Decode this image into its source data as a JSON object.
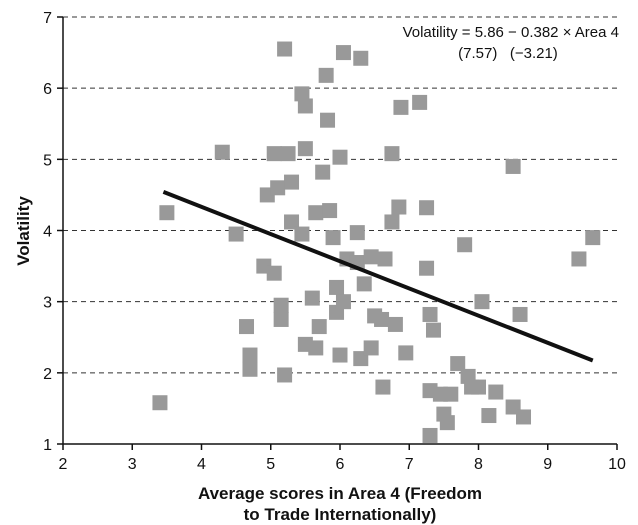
{
  "chart_data": {
    "type": "scatter",
    "xlabel_lines": [
      "Average scores in Area 4 (Freedom",
      "to Trade Internationally)"
    ],
    "ylabel": "Volatility",
    "xlim": [
      2,
      10
    ],
    "ylim": [
      1,
      7
    ],
    "x_ticks": [
      "2",
      "3",
      "4",
      "5",
      "6",
      "7",
      "8",
      "9",
      "10"
    ],
    "y_ticks": [
      "1",
      "2",
      "3",
      "4",
      "5",
      "6",
      "7"
    ],
    "grid": "horizontal-dashed",
    "equation": {
      "line1": "Volatility = 5.86 − 0.382 × Area 4",
      "line2": "(7.57)   (−3.21)"
    },
    "fit_line": {
      "intercept": 5.86,
      "slope": -0.382,
      "x_start": 3.45,
      "x_end": 9.65
    },
    "points": [
      [
        3.4,
        1.58
      ],
      [
        3.5,
        4.25
      ],
      [
        4.3,
        5.1
      ],
      [
        4.5,
        3.95
      ],
      [
        4.65,
        2.65
      ],
      [
        4.7,
        2.25
      ],
      [
        4.7,
        2.05
      ],
      [
        4.9,
        3.5
      ],
      [
        4.95,
        4.5
      ],
      [
        5.05,
        3.4
      ],
      [
        5.05,
        5.08
      ],
      [
        5.1,
        4.6
      ],
      [
        5.15,
        2.95
      ],
      [
        5.15,
        2.75
      ],
      [
        5.2,
        1.97
      ],
      [
        5.2,
        6.55
      ],
      [
        5.25,
        5.08
      ],
      [
        5.3,
        4.68
      ],
      [
        5.3,
        4.12
      ],
      [
        5.45,
        3.95
      ],
      [
        5.45,
        5.92
      ],
      [
        5.5,
        5.75
      ],
      [
        5.5,
        2.4
      ],
      [
        5.5,
        5.15
      ],
      [
        5.6,
        3.05
      ],
      [
        5.65,
        2.35
      ],
      [
        5.65,
        4.25
      ],
      [
        5.7,
        2.65
      ],
      [
        5.75,
        4.82
      ],
      [
        5.8,
        6.18
      ],
      [
        5.82,
        5.55
      ],
      [
        5.85,
        4.28
      ],
      [
        5.9,
        3.9
      ],
      [
        5.95,
        2.85
      ],
      [
        5.95,
        3.2
      ],
      [
        6.0,
        5.03
      ],
      [
        6.0,
        2.25
      ],
      [
        6.05,
        6.5
      ],
      [
        6.05,
        3.0
      ],
      [
        6.1,
        3.6
      ],
      [
        6.25,
        3.55
      ],
      [
        6.25,
        3.97
      ],
      [
        6.3,
        6.42
      ],
      [
        6.3,
        2.2
      ],
      [
        6.35,
        3.25
      ],
      [
        6.45,
        2.35
      ],
      [
        6.45,
        3.63
      ],
      [
        6.5,
        2.8
      ],
      [
        6.6,
        2.75
      ],
      [
        6.62,
        1.8
      ],
      [
        6.65,
        3.6
      ],
      [
        6.75,
        5.08
      ],
      [
        6.75,
        4.12
      ],
      [
        6.8,
        2.68
      ],
      [
        6.85,
        4.33
      ],
      [
        6.88,
        5.73
      ],
      [
        6.95,
        2.28
      ],
      [
        7.15,
        5.8
      ],
      [
        7.25,
        3.47
      ],
      [
        7.25,
        4.32
      ],
      [
        7.3,
        2.82
      ],
      [
        7.3,
        1.75
      ],
      [
        7.3,
        1.12
      ],
      [
        7.35,
        2.6
      ],
      [
        7.45,
        1.7
      ],
      [
        7.5,
        1.42
      ],
      [
        7.55,
        1.3
      ],
      [
        7.6,
        1.7
      ],
      [
        7.7,
        2.13
      ],
      [
        7.8,
        3.8
      ],
      [
        7.85,
        1.95
      ],
      [
        7.9,
        1.8
      ],
      [
        8.0,
        1.8
      ],
      [
        8.05,
        3.0
      ],
      [
        8.15,
        1.4
      ],
      [
        8.25,
        1.73
      ],
      [
        8.5,
        1.52
      ],
      [
        8.5,
        4.9
      ],
      [
        8.6,
        2.82
      ],
      [
        8.65,
        1.38
      ],
      [
        9.45,
        3.6
      ],
      [
        9.65,
        3.9
      ]
    ]
  }
}
